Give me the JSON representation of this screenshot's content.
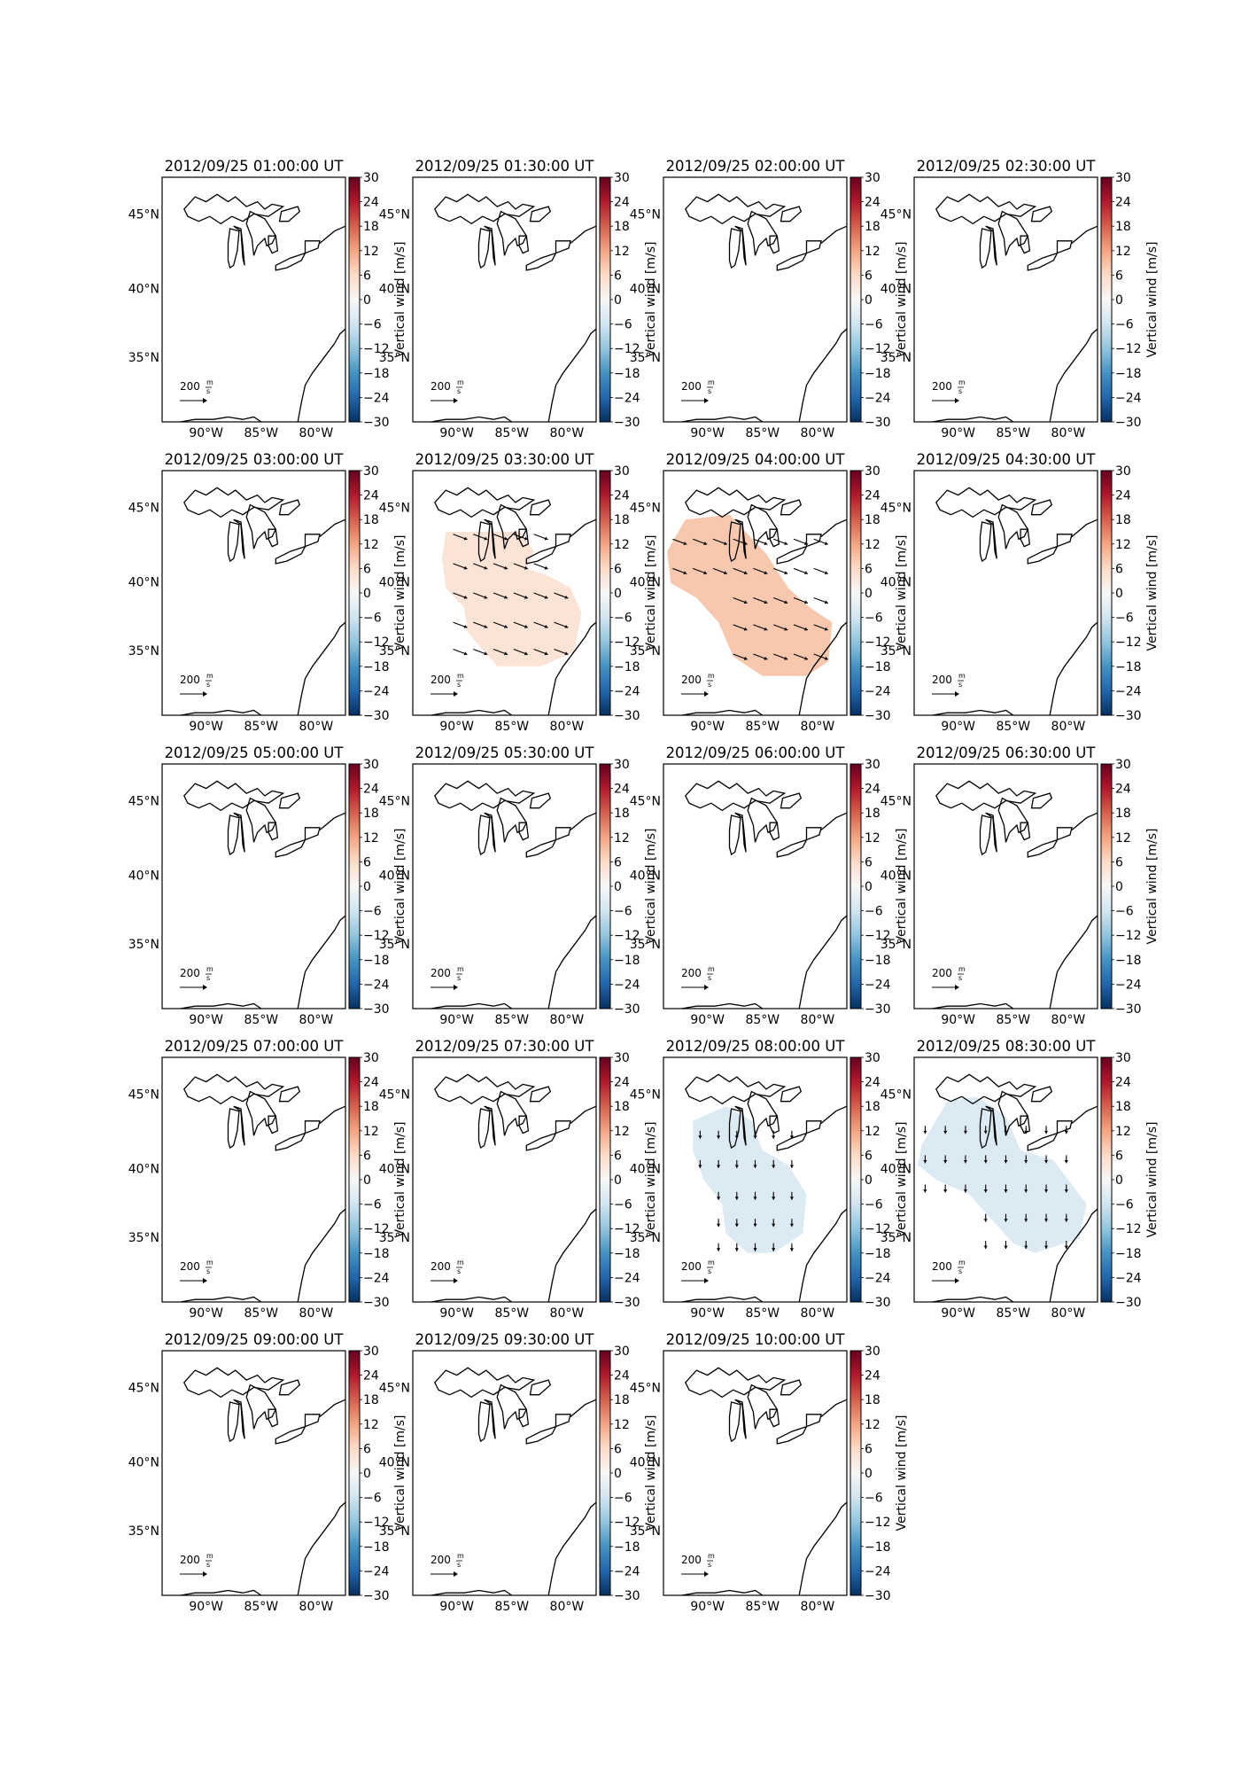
{
  "figure": {
    "colorbar": {
      "label": "Vertical wind [m/s]",
      "ticks": [
        "30",
        "24",
        "18",
        "12",
        "6",
        "0",
        "−6",
        "−12",
        "−18",
        "−24",
        "−30"
      ],
      "range": [
        -30,
        30
      ],
      "colormap": "RdBu_r",
      "colors": [
        "#053061",
        "#2166ac",
        "#4393c3",
        "#92c5de",
        "#d1e5f0",
        "#f7f7f7",
        "#fddbc7",
        "#f4a582",
        "#d6604d",
        "#b2182b",
        "#67001f"
      ]
    },
    "lat_labels": [
      "45°N",
      "40°N",
      "35°N"
    ],
    "lon_labels": [
      "90°W",
      "85°W",
      "80°W"
    ],
    "reference_arrow": {
      "value_label": "200",
      "unit_num": "m",
      "unit_den": "s"
    },
    "panels": [
      {
        "title": "2012/09/25 01:00:00 UT",
        "field": "none"
      },
      {
        "title": "2012/09/25 01:30:00 UT",
        "field": "none"
      },
      {
        "title": "2012/09/25 02:00:00 UT",
        "field": "none"
      },
      {
        "title": "2012/09/25 02:30:00 UT",
        "field": "none"
      },
      {
        "title": "2012/09/25 03:00:00 UT",
        "field": "none"
      },
      {
        "title": "2012/09/25 03:30:00 UT",
        "field": "weak-upward",
        "fill": "#fbe3d6",
        "arrows": "east-southeast"
      },
      {
        "title": "2012/09/25 04:00:00 UT",
        "field": "upward",
        "fill": "#f7c8ad",
        "arrows": "east-southeast"
      },
      {
        "title": "2012/09/25 04:30:00 UT",
        "field": "none"
      },
      {
        "title": "2012/09/25 05:00:00 UT",
        "field": "none"
      },
      {
        "title": "2012/09/25 05:30:00 UT",
        "field": "none"
      },
      {
        "title": "2012/09/25 06:00:00 UT",
        "field": "none"
      },
      {
        "title": "2012/09/25 06:30:00 UT",
        "field": "none"
      },
      {
        "title": "2012/09/25 07:00:00 UT",
        "field": "none"
      },
      {
        "title": "2012/09/25 07:30:00 UT",
        "field": "none"
      },
      {
        "title": "2012/09/25 08:00:00 UT",
        "field": "weak-downward",
        "fill": "#dceaf3",
        "arrows": "south"
      },
      {
        "title": "2012/09/25 08:30:00 UT",
        "field": "weak-downward",
        "fill": "#dceaf3",
        "arrows": "south"
      },
      {
        "title": "2012/09/25 09:00:00 UT",
        "field": "none"
      },
      {
        "title": "2012/09/25 09:30:00 UT",
        "field": "none"
      },
      {
        "title": "2012/09/25 10:00:00 UT",
        "field": "none"
      }
    ]
  }
}
